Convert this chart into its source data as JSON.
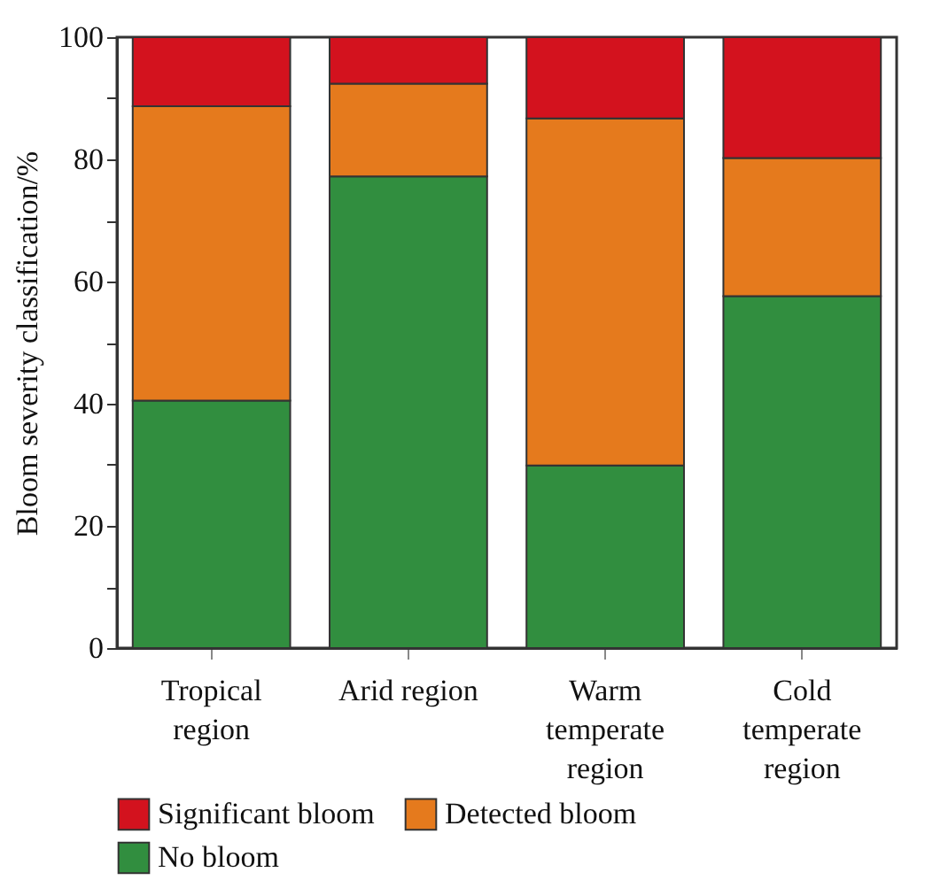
{
  "chart_data": {
    "type": "bar",
    "stacked": true,
    "ylabel": "Bloom severity classification/%",
    "categories": [
      "Tropical region",
      "Arid region",
      "Warm temperate region",
      "Cold temperate region"
    ],
    "series": [
      {
        "name": "No bloom",
        "color": "#318e3f",
        "values": [
          40.5,
          77.2,
          29.9,
          57.6
        ]
      },
      {
        "name": "Detected bloom",
        "color": "#e57a1d",
        "values": [
          48.2,
          15.2,
          56.8,
          22.6
        ]
      },
      {
        "name": "Significant bloom",
        "color": "#d3121e",
        "values": [
          11.3,
          7.6,
          13.3,
          19.8
        ]
      }
    ],
    "ylim": [
      0,
      100
    ],
    "yticks": [
      0,
      {
        "value": 10,
        "label": null
      },
      20,
      {
        "value": 30,
        "label": null
      },
      40,
      {
        "value": 50,
        "label": null
      },
      60,
      {
        "value": 70,
        "label": null
      },
      80,
      {
        "value": 90,
        "label": null
      },
      100
    ],
    "grid": false,
    "legend": "bottom"
  }
}
